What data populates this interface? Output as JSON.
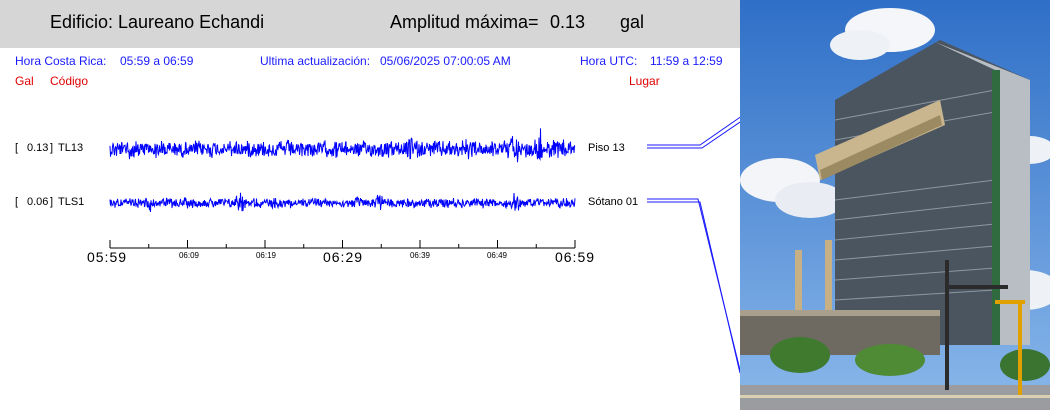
{
  "header": {
    "building_label": "Edificio: Laureano Echandi",
    "amplitude_label": "Amplitud máxima=",
    "amplitude_value": "0.13",
    "amplitude_unit": "gal"
  },
  "info": {
    "local_time_label": "Hora Costa Rica:",
    "local_time_range": "05:59 a 06:59",
    "update_label": "Ultima actualización:",
    "update_value": "05/06/2025 07:00:05 AM",
    "utc_label": "Hora UTC:",
    "utc_range": "11:59 a 12:59",
    "col_gal": "Gal",
    "col_code": "Código",
    "col_place": "Lugar"
  },
  "channels": [
    {
      "gal": "0.13",
      "code": "TL13",
      "place": "Piso 13",
      "prefix": "[",
      "suffix": "]"
    },
    {
      "gal": "0.06",
      "code": "TLS1",
      "place": "Sótano 01",
      "prefix": "[",
      "suffix": "]"
    }
  ],
  "time_axis": {
    "major_labels": [
      "05:59",
      "06:29",
      "06:59"
    ],
    "minor_labels": [
      "06:09",
      "06:19",
      "06:39",
      "06:49"
    ]
  },
  "colors": {
    "trace": "#0000ff",
    "header_bg": "#d6d6d6",
    "info_text": "#1a1aff",
    "column_text": "#e00000"
  }
}
